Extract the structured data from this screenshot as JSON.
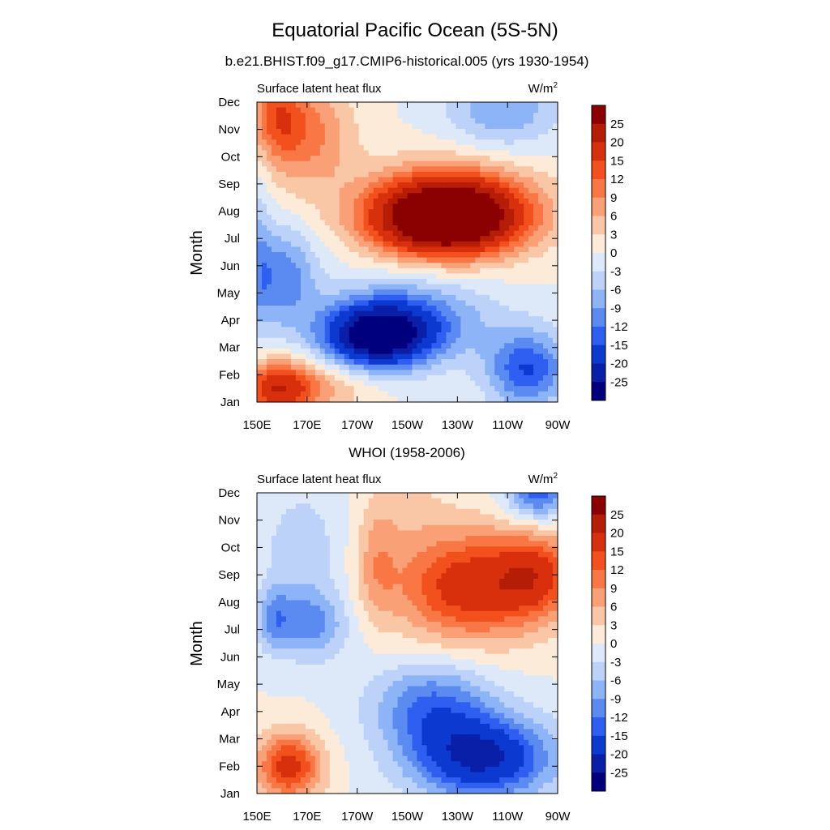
{
  "figure": {
    "title": "Equatorial Pacific Ocean (5S-5N)"
  },
  "colorbar": {
    "labels": [
      "25",
      "20",
      "15",
      "12",
      "9",
      "6",
      "3",
      "0",
      "-3",
      "-6",
      "-9",
      "-12",
      "-15",
      "-20",
      "-25"
    ],
    "colors_top_to_bottom": [
      "#8b0000",
      "#b51d07",
      "#d8300d",
      "#f2501d",
      "#f87744",
      "#f9a076",
      "#f9c6a6",
      "#fdebd9",
      "#dde9f9",
      "#bcd2f9",
      "#8eb4f8",
      "#5b8af1",
      "#2f5ff0",
      "#0c3ad0",
      "#0a1fa7",
      "#00007f"
    ]
  },
  "chart_data": [
    {
      "type": "heatmap",
      "panel_title": "b.e21.BHIST.f09_g17.CMIP6-historical.005 (yrs 1930-1954)",
      "left_label": "Surface latent heat flux",
      "units": "W/m",
      "units_sup": "2",
      "ylabel": "Month",
      "x_ticks": [
        "150E",
        "170E",
        "170W",
        "150W",
        "130W",
        "110W",
        "90W"
      ],
      "y_ticks": [
        "Jan",
        "Feb",
        "Mar",
        "Apr",
        "May",
        "Jun",
        "Jul",
        "Aug",
        "Sep",
        "Oct",
        "Nov",
        "Dec"
      ],
      "x_range_deg_east": [
        150,
        270
      ],
      "contour_levels": [
        -25,
        -20,
        -15,
        -12,
        -9,
        -6,
        -3,
        0,
        3,
        6,
        9,
        12,
        15,
        20,
        25
      ],
      "features": [
        {
          "lon": 225,
          "month": 6.7,
          "value": 30,
          "sx": 28,
          "sy": 1.3
        },
        {
          "lon": 228,
          "month": 7.2,
          "value": 15,
          "sx": 34,
          "sy": 1.6
        },
        {
          "lon": 158,
          "month": 10.6,
          "value": 10,
          "sx": 10,
          "sy": 1.6
        },
        {
          "lon": 170,
          "month": 9.8,
          "value": 10,
          "sx": 18,
          "sy": 2.0
        },
        {
          "lon": 198,
          "month": 2.4,
          "value": -26,
          "sx": 20,
          "sy": 1.1
        },
        {
          "lon": 210,
          "month": 3.0,
          "value": -12,
          "sx": 32,
          "sy": 1.5
        },
        {
          "lon": 160,
          "month": 4.6,
          "value": -11,
          "sx": 14,
          "sy": 1.8
        },
        {
          "lon": 258,
          "month": 1.2,
          "value": -15,
          "sx": 16,
          "sy": 1.4
        },
        {
          "lon": 248,
          "month": 10.8,
          "value": -9,
          "sx": 22,
          "sy": 1.5
        },
        {
          "lon": 158,
          "month": 0.5,
          "value": 18,
          "sx": 14,
          "sy": 1.0
        },
        {
          "lon": 176,
          "month": 0.5,
          "value": 6,
          "sx": 20,
          "sy": 1.0
        },
        {
          "lon": 151,
          "month": 5.5,
          "value": -5,
          "sx": 5,
          "sy": 3.0
        }
      ]
    },
    {
      "type": "heatmap",
      "panel_title": "WHOI (1958-2006)",
      "left_label": "Surface latent heat flux",
      "units": "W/m",
      "units_sup": "2",
      "ylabel": "Month",
      "x_ticks": [
        "150E",
        "170E",
        "170W",
        "150W",
        "130W",
        "110W",
        "90W"
      ],
      "y_ticks": [
        "Jan",
        "Feb",
        "Mar",
        "Apr",
        "May",
        "Jun",
        "Jul",
        "Aug",
        "Sep",
        "Oct",
        "Nov",
        "Dec"
      ],
      "x_range_deg_east": [
        150,
        270
      ],
      "contour_levels": [
        -25,
        -20,
        -15,
        -12,
        -9,
        -6,
        -3,
        0,
        3,
        6,
        9,
        12,
        15,
        20,
        25
      ],
      "features": [
        {
          "lon": 235,
          "month": 7.6,
          "value": 18,
          "sx": 30,
          "sy": 2.0
        },
        {
          "lon": 262,
          "month": 8.0,
          "value": 12,
          "sx": 16,
          "sy": 1.5
        },
        {
          "lon": 198,
          "month": 8.5,
          "value": 6,
          "sx": 8,
          "sy": 2.0
        },
        {
          "lon": 163,
          "month": 1.0,
          "value": 17,
          "sx": 13,
          "sy": 1.2
        },
        {
          "lon": 240,
          "month": 1.3,
          "value": -21,
          "sx": 28,
          "sy": 1.5
        },
        {
          "lon": 220,
          "month": 3.2,
          "value": -12,
          "sx": 24,
          "sy": 1.6
        },
        {
          "lon": 172,
          "month": 6.2,
          "value": -10,
          "sx": 14,
          "sy": 1.3
        },
        {
          "lon": 157,
          "month": 6.4,
          "value": -8,
          "sx": 7,
          "sy": 1.2
        },
        {
          "lon": 168,
          "month": 9.0,
          "value": -5,
          "sx": 16,
          "sy": 2.2
        },
        {
          "lon": 262,
          "month": 11.0,
          "value": -14,
          "sx": 12,
          "sy": 1.0
        },
        {
          "lon": 210,
          "month": 10.5,
          "value": 3,
          "sx": 18,
          "sy": 1.5
        }
      ]
    }
  ]
}
